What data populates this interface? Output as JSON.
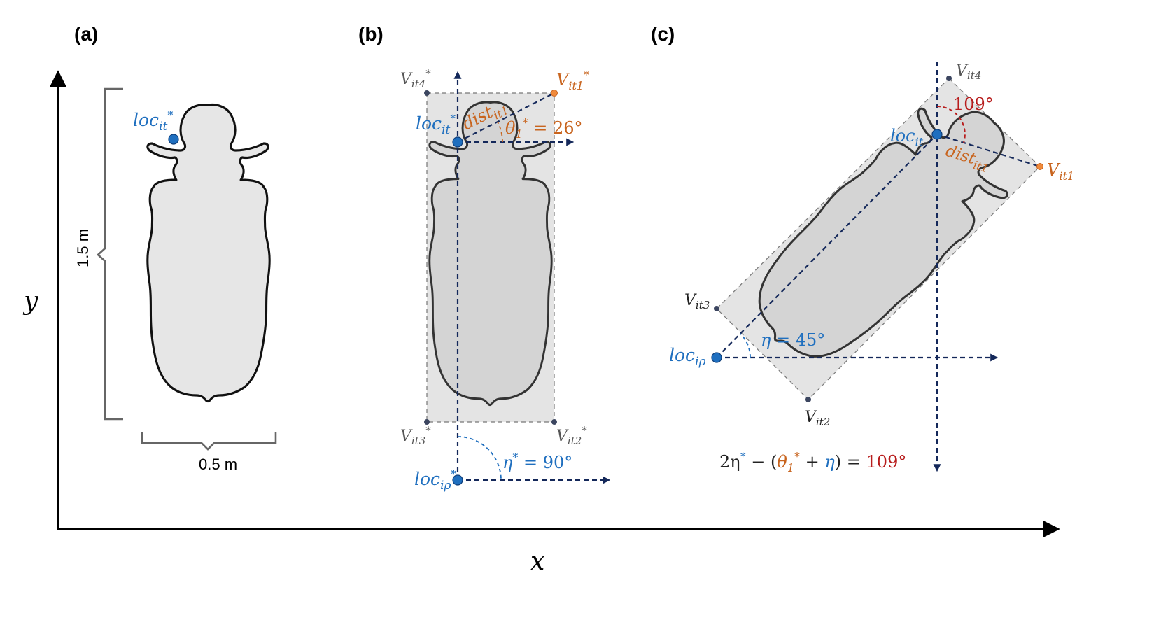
{
  "panels": {
    "a": "(a)",
    "b": "(b)",
    "c": "(c)"
  },
  "axes": {
    "x": "x",
    "y": "y"
  },
  "panel_a": {
    "height_label": "1.5 m",
    "width_label": "0.5 m",
    "loc_base": "loc",
    "loc_sub": "it",
    "loc_sup": "*"
  },
  "panel_b": {
    "v4": {
      "base": "V",
      "sub": "it4",
      "sup": "*"
    },
    "v1": {
      "base": "V",
      "sub": "it1",
      "sup": "*"
    },
    "v3": {
      "base": "V",
      "sub": "it3",
      "sup": "*"
    },
    "v2": {
      "base": "V",
      "sub": "it2",
      "sup": "*"
    },
    "loc": {
      "base": "loc",
      "sub": "it",
      "sup": "*"
    },
    "dist": {
      "base": "dist",
      "sub": "it1"
    },
    "theta": {
      "base": "θ",
      "sub": "1",
      "sup": "*",
      "value": " = 26°"
    },
    "loc_rho": {
      "base": "loc",
      "sub": "iρ",
      "sup": "*"
    },
    "eta": {
      "base": "η",
      "sup": "*",
      "value": " = 90°"
    }
  },
  "panel_c": {
    "v4": {
      "base": "V",
      "sub": "it4"
    },
    "v1": {
      "base": "V",
      "sub": "it1"
    },
    "v3": {
      "base": "V",
      "sub": "it3"
    },
    "v2": {
      "base": "V",
      "sub": "it2"
    },
    "loc": {
      "base": "loc",
      "sub": "it"
    },
    "dist": {
      "base": "dist",
      "sub": "it1"
    },
    "angle": "109°",
    "eta": {
      "base": "η",
      "value": " = 45°"
    },
    "loc_rho": {
      "base": "loc",
      "sub": "iρ"
    },
    "formula": {
      "part1": "2η",
      "part1_sup": "*",
      "part2": " − (",
      "theta": "θ",
      "theta_sub": "1",
      "theta_sup": "*",
      "plus": " + ",
      "eta": "η",
      "part3": ") = ",
      "result": "109°"
    }
  },
  "colors": {
    "blue": "#1f6fbf",
    "orange": "#c8641e",
    "red": "#b81d1d",
    "navy": "#14285a",
    "gray": "#555555"
  }
}
